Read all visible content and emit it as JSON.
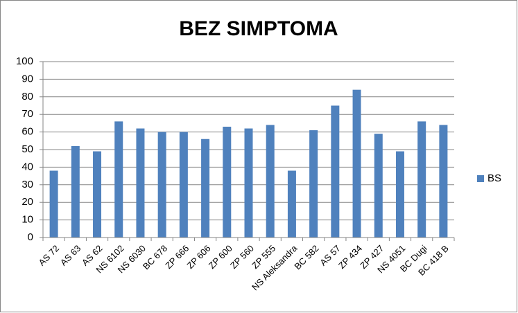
{
  "chart_data": {
    "type": "bar",
    "title": "BEZ SIMPTOMA",
    "categories": [
      "AS 72",
      "AS 63",
      "AS 62",
      "NS 6102",
      "NS 6030",
      "BC 678",
      "ZP 666",
      "ZP 606",
      "ZP 600",
      "ZP 560",
      "ZP 555",
      "NS Aleksandra",
      "BC 582",
      "AS 57",
      "ZP 434",
      "ZP 427",
      "NS 4051",
      "BC Dugi",
      "BC 418 B"
    ],
    "series": [
      {
        "name": "BS",
        "color": "#4f81bd",
        "values": [
          38,
          52,
          49,
          66,
          62,
          60,
          60,
          56,
          63,
          62,
          64,
          38,
          61,
          75,
          84,
          59,
          49,
          66,
          64
        ]
      }
    ],
    "ylim": [
      0,
      100
    ],
    "yticks": [
      0,
      10,
      20,
      30,
      40,
      50,
      60,
      70,
      80,
      90,
      100
    ],
    "grid": true,
    "legend": "right"
  }
}
